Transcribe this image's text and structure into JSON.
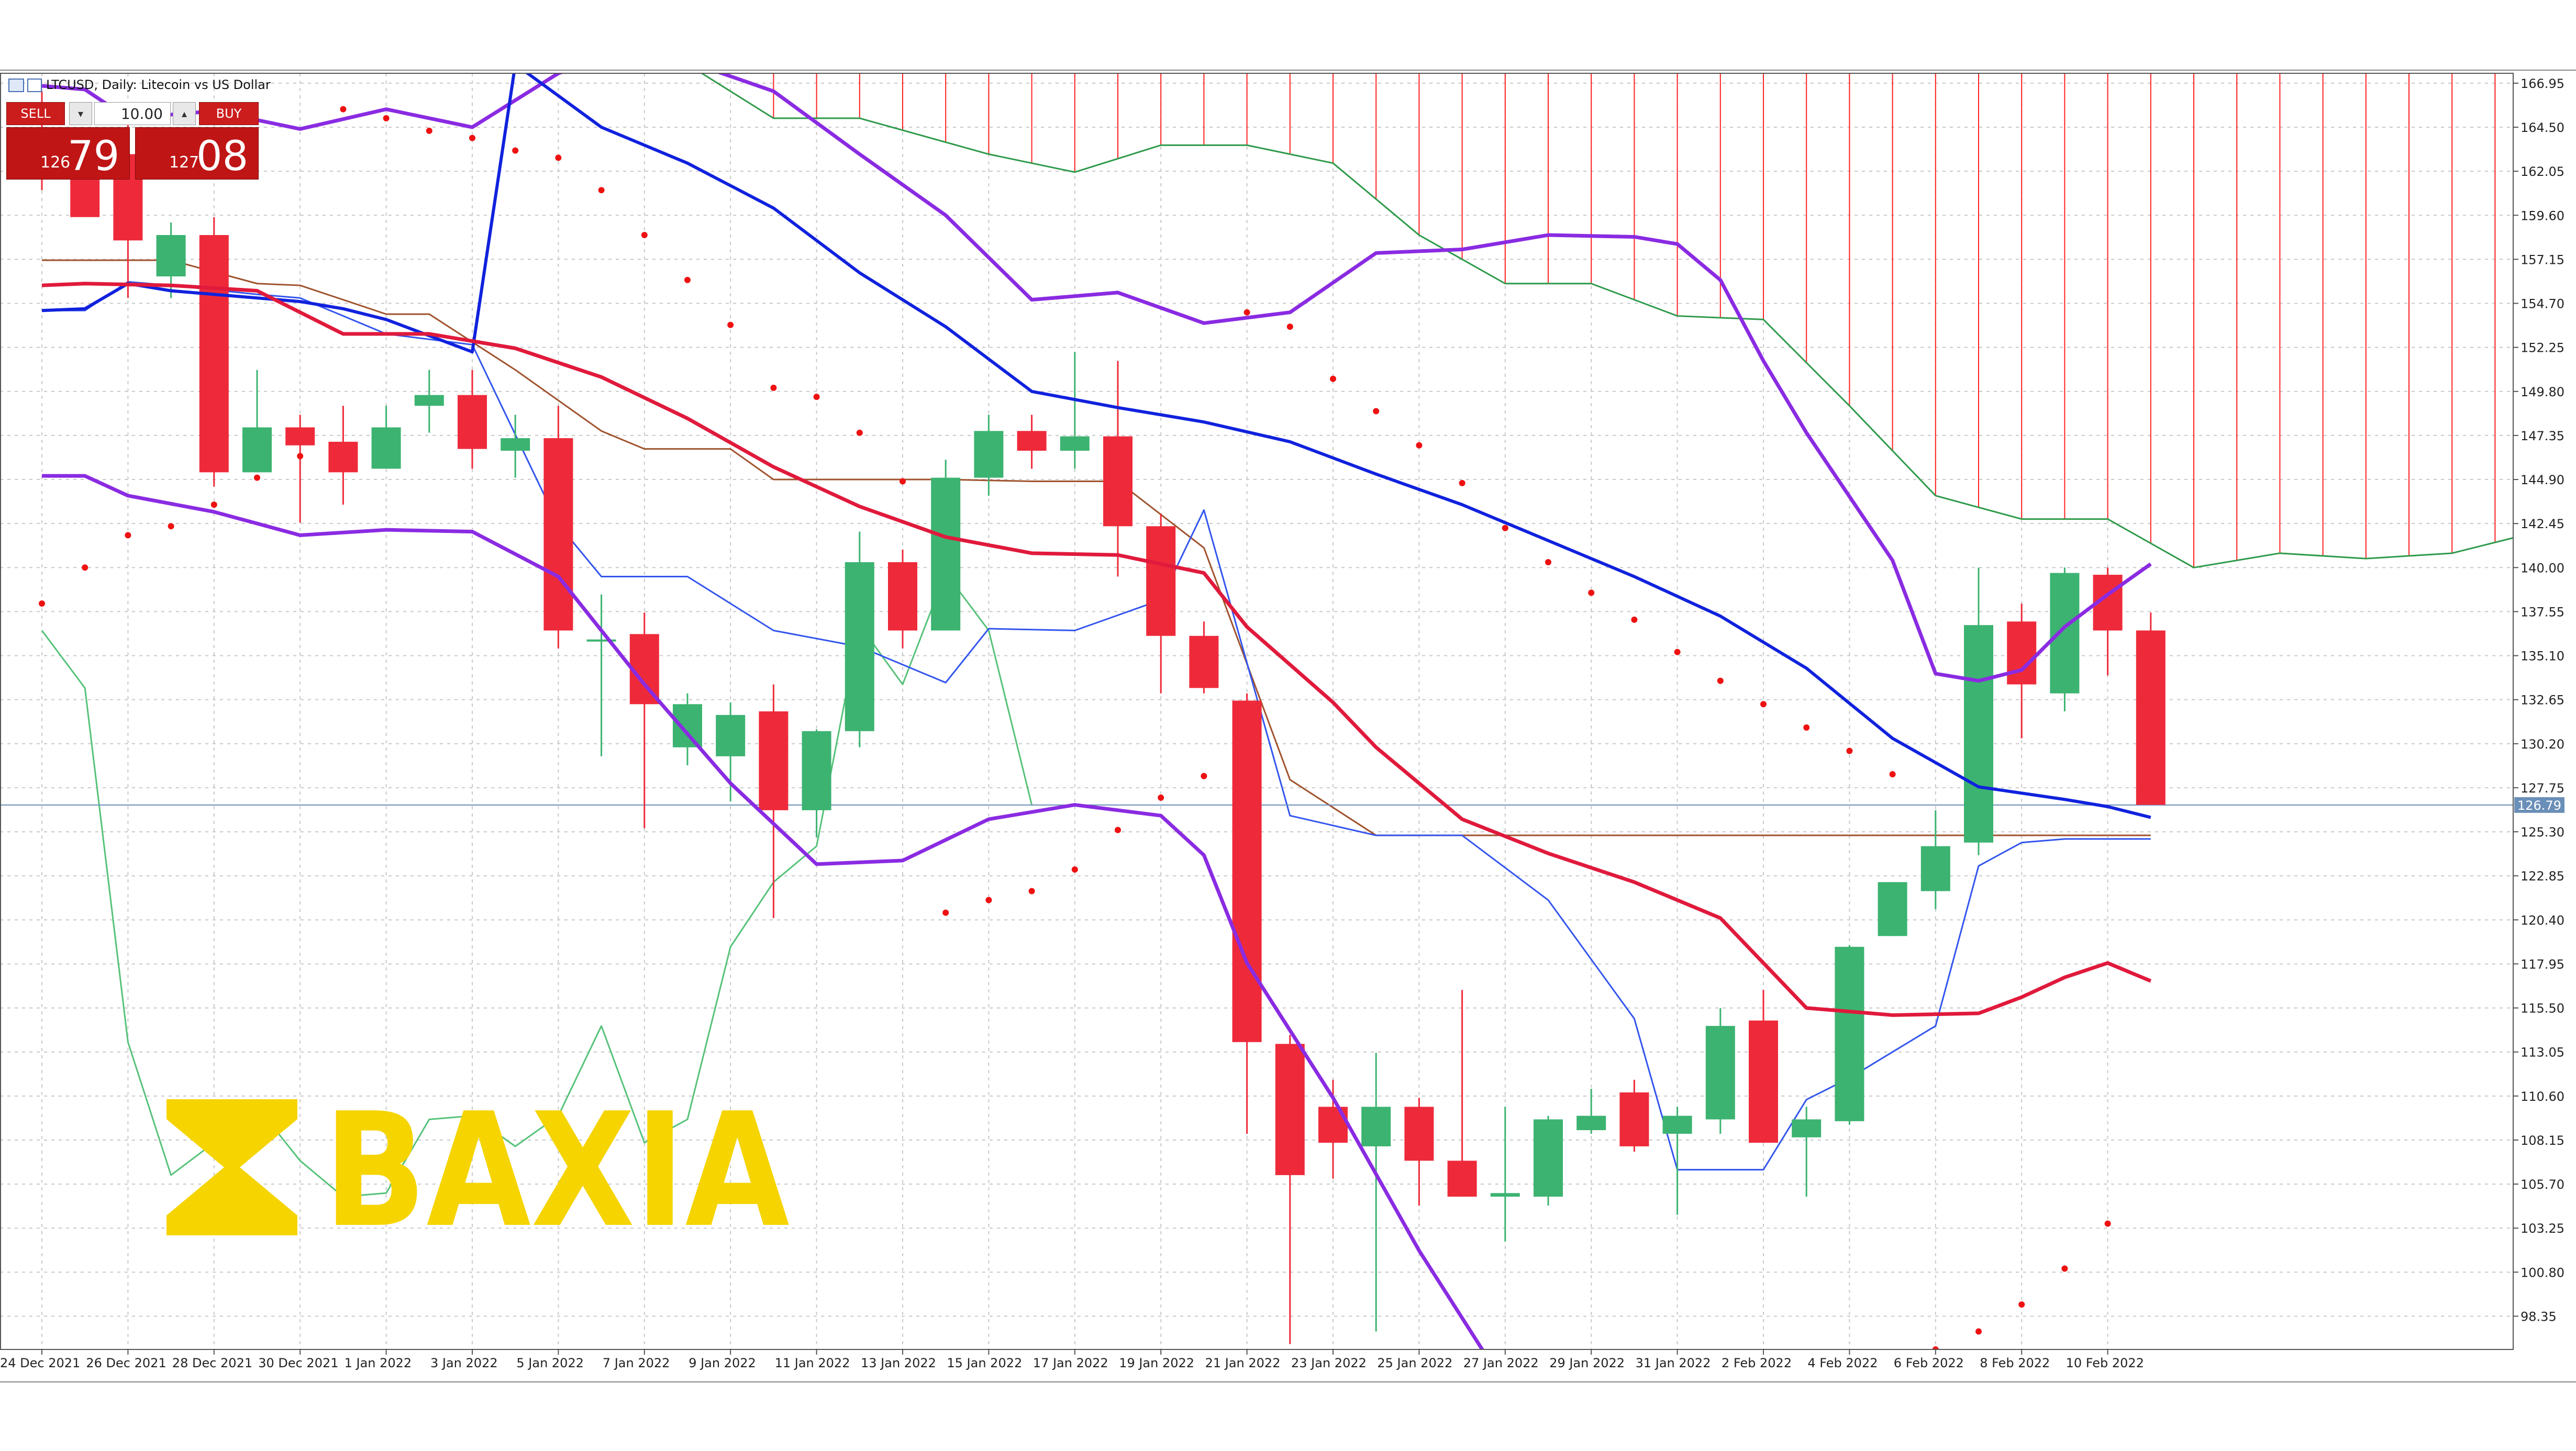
{
  "window": {
    "symbol_title": "LTCUSD, Daily:  Litecoin vs US Dollar"
  },
  "trade_panel": {
    "sell_label": "SELL",
    "buy_label": "BUY",
    "lot_value": "10.00",
    "sell_price_small": "126",
    "sell_price_big": "79",
    "buy_price_small": "127",
    "buy_price_big": "08"
  },
  "logo": {
    "text": "BAXIA",
    "color": "#f5d400"
  },
  "colors": {
    "bull": "#3cb371",
    "bear": "#ee2a3a",
    "ma_blue": "#1022dd",
    "ma_red": "#e01a3c",
    "ma_purple": "#8a2be2",
    "tenkan_blue": "#3355ee",
    "kijun_brown": "#a0522d",
    "chikou_green": "#2e9a4a",
    "cloud_red": "#ff2020",
    "sar": "#ee1111"
  },
  "chart_data": {
    "type": "candlestick",
    "ylim": [
      96.5,
      167.5
    ],
    "y_ticks": [
      "166.95",
      "164.50",
      "162.05",
      "159.60",
      "157.15",
      "154.70",
      "152.25",
      "149.80",
      "147.35",
      "144.90",
      "142.45",
      "140.00",
      "137.55",
      "135.10",
      "132.65",
      "130.20",
      "127.75",
      "125.30",
      "122.85",
      "120.40",
      "117.95",
      "115.50",
      "113.05",
      "110.60",
      "108.15",
      "105.70",
      "103.25",
      "100.80",
      "98.35"
    ],
    "current_price_label": "126.79",
    "current_price": 126.79,
    "x_labels": [
      "24 Dec 2021",
      "26 Dec 2021",
      "28 Dec 2021",
      "30 Dec 2021",
      "1 Jan 2022",
      "3 Jan 2022",
      "5 Jan 2022",
      "7 Jan 2022",
      "9 Jan 2022",
      "11 Jan 2022",
      "13 Jan 2022",
      "15 Jan 2022",
      "17 Jan 2022",
      "19 Jan 2022",
      "21 Jan 2022",
      "23 Jan 2022",
      "25 Jan 2022",
      "27 Jan 2022",
      "29 Jan 2022",
      "31 Jan 2022",
      "2 Feb 2022",
      "4 Feb 2022",
      "6 Feb 2022",
      "8 Feb 2022",
      "10 Feb 2022"
    ],
    "x_label_bars": [
      0,
      2,
      4,
      6,
      8,
      10,
      12,
      14,
      16,
      18,
      20,
      22,
      24,
      26,
      28,
      30,
      32,
      34,
      36,
      38,
      40,
      42,
      44,
      46,
      48
    ],
    "candles": [
      {
        "o": 163.5,
        "h": 166.5,
        "l": 161.0,
        "c": 162.5
      },
      {
        "o": 162.5,
        "h": 164.5,
        "l": 159.5,
        "c": 159.5
      },
      {
        "o": 163.0,
        "h": 165.5,
        "l": 155.0,
        "c": 158.2
      },
      {
        "o": 156.2,
        "h": 159.2,
        "l": 155.0,
        "c": 158.5
      },
      {
        "o": 158.5,
        "h": 159.5,
        "l": 144.5,
        "c": 145.3
      },
      {
        "o": 145.3,
        "h": 151.0,
        "l": 145.3,
        "c": 147.8
      },
      {
        "o": 147.8,
        "h": 148.5,
        "l": 142.5,
        "c": 146.8
      },
      {
        "o": 147.0,
        "h": 149.0,
        "l": 143.5,
        "c": 145.3
      },
      {
        "o": 145.5,
        "h": 149.0,
        "l": 145.5,
        "c": 147.8
      },
      {
        "o": 149.0,
        "h": 151.0,
        "l": 147.5,
        "c": 149.6
      },
      {
        "o": 149.6,
        "h": 151.0,
        "l": 145.5,
        "c": 146.6
      },
      {
        "o": 146.5,
        "h": 148.5,
        "l": 145.0,
        "c": 147.2
      },
      {
        "o": 147.2,
        "h": 149.0,
        "l": 135.5,
        "c": 136.5
      },
      {
        "o": 136.0,
        "h": 138.5,
        "l": 129.5,
        "c": 136.0
      },
      {
        "o": 136.3,
        "h": 137.5,
        "l": 125.5,
        "c": 132.4
      },
      {
        "o": 130.0,
        "h": 133.0,
        "l": 129.0,
        "c": 132.4
      },
      {
        "o": 129.5,
        "h": 132.5,
        "l": 127.0,
        "c": 131.8
      },
      {
        "o": 132.0,
        "h": 133.5,
        "l": 120.5,
        "c": 126.5
      },
      {
        "o": 126.5,
        "h": 131.0,
        "l": 125.0,
        "c": 130.9
      },
      {
        "o": 130.9,
        "h": 142.0,
        "l": 130.0,
        "c": 140.3
      },
      {
        "o": 140.3,
        "h": 141.0,
        "l": 135.5,
        "c": 136.5
      },
      {
        "o": 136.5,
        "h": 146.0,
        "l": 136.5,
        "c": 145.0
      },
      {
        "o": 145.0,
        "h": 148.5,
        "l": 144.0,
        "c": 147.6
      },
      {
        "o": 147.6,
        "h": 148.5,
        "l": 145.5,
        "c": 146.5
      },
      {
        "o": 146.5,
        "h": 152.0,
        "l": 145.5,
        "c": 147.3
      },
      {
        "o": 147.3,
        "h": 151.5,
        "l": 139.5,
        "c": 142.3
      },
      {
        "o": 142.3,
        "h": 143.0,
        "l": 133.0,
        "c": 136.2
      },
      {
        "o": 136.2,
        "h": 137.0,
        "l": 133.0,
        "c": 133.3
      },
      {
        "o": 132.6,
        "h": 133.0,
        "l": 108.5,
        "c": 113.6
      },
      {
        "o": 113.5,
        "h": 114.0,
        "l": 96.8,
        "c": 106.2
      },
      {
        "o": 110.0,
        "h": 111.5,
        "l": 106.0,
        "c": 108.0
      },
      {
        "o": 107.8,
        "h": 113.0,
        "l": 97.5,
        "c": 110.0
      },
      {
        "o": 110.0,
        "h": 110.5,
        "l": 104.5,
        "c": 107.0
      },
      {
        "o": 107.0,
        "h": 116.5,
        "l": 105.0,
        "c": 105.0
      },
      {
        "o": 105.0,
        "h": 110.0,
        "l": 102.5,
        "c": 105.2
      },
      {
        "o": 105.0,
        "h": 109.5,
        "l": 104.5,
        "c": 109.3
      },
      {
        "o": 108.7,
        "h": 111.0,
        "l": 108.5,
        "c": 109.5
      },
      {
        "o": 110.8,
        "h": 111.5,
        "l": 107.5,
        "c": 107.8
      },
      {
        "o": 108.5,
        "h": 110.0,
        "l": 104.0,
        "c": 109.5
      },
      {
        "o": 109.3,
        "h": 115.5,
        "l": 108.5,
        "c": 114.5
      },
      {
        "o": 114.8,
        "h": 116.5,
        "l": 108.0,
        "c": 108.0
      },
      {
        "o": 108.3,
        "h": 110.0,
        "l": 105.0,
        "c": 109.3
      },
      {
        "o": 109.2,
        "h": 119.0,
        "l": 109.0,
        "c": 118.9
      },
      {
        "o": 119.5,
        "h": 122.5,
        "l": 119.5,
        "c": 122.5
      },
      {
        "o": 122.0,
        "h": 126.5,
        "l": 121.0,
        "c": 124.5
      },
      {
        "o": 124.7,
        "h": 140.0,
        "l": 124.0,
        "c": 136.8
      },
      {
        "o": 137.0,
        "h": 138.0,
        "l": 130.5,
        "c": 133.5
      },
      {
        "o": 133.0,
        "h": 140.0,
        "l": 132.0,
        "c": 139.7
      },
      {
        "o": 139.6,
        "h": 140.0,
        "l": 134.0,
        "c": 136.5
      },
      {
        "o": 136.5,
        "h": 137.5,
        "l": 126.8,
        "c": 126.8
      }
    ],
    "ma_blue": [
      [
        0,
        154.3
      ],
      [
        1,
        154.4
      ],
      [
        2,
        155.8
      ],
      [
        3,
        155.4
      ],
      [
        4,
        155.2
      ],
      [
        6,
        154.8
      ],
      [
        7,
        154.4
      ],
      [
        8,
        153.8
      ],
      [
        10,
        152.0
      ],
      [
        11,
        168.0
      ],
      [
        13,
        164.5
      ],
      [
        15,
        162.5
      ],
      [
        17,
        160.0
      ],
      [
        19,
        156.4
      ],
      [
        21,
        153.4
      ],
      [
        23,
        149.8
      ],
      [
        25,
        148.9
      ],
      [
        27,
        148.1
      ],
      [
        29,
        147.0
      ],
      [
        31,
        145.2
      ],
      [
        33,
        143.5
      ],
      [
        35,
        141.5
      ],
      [
        37,
        139.5
      ],
      [
        39,
        137.3
      ],
      [
        41,
        134.4
      ],
      [
        43,
        130.5
      ],
      [
        45,
        127.8
      ],
      [
        47,
        127.1
      ],
      [
        48,
        126.7
      ],
      [
        49,
        126.1
      ]
    ],
    "ma_red": [
      [
        0,
        155.7
      ],
      [
        1,
        155.8
      ],
      [
        3,
        155.7
      ],
      [
        5,
        155.4
      ],
      [
        7,
        153.0
      ],
      [
        9,
        153.0
      ],
      [
        11,
        152.2
      ],
      [
        13,
        150.6
      ],
      [
        15,
        148.3
      ],
      [
        17,
        145.6
      ],
      [
        19,
        143.4
      ],
      [
        21,
        141.7
      ],
      [
        23,
        140.8
      ],
      [
        25,
        140.7
      ],
      [
        27,
        139.7
      ],
      [
        28,
        136.7
      ],
      [
        30,
        132.5
      ],
      [
        31,
        130.0
      ],
      [
        33,
        126.0
      ],
      [
        35,
        124.1
      ],
      [
        37,
        122.5
      ],
      [
        39,
        120.5
      ],
      [
        41,
        115.5
      ],
      [
        43,
        115.1
      ],
      [
        45,
        115.2
      ],
      [
        46,
        116.1
      ],
      [
        47,
        117.2
      ],
      [
        48,
        118.0
      ],
      [
        49,
        117.0
      ]
    ],
    "ma_purple_upper": [
      [
        0,
        166.8
      ],
      [
        1,
        166.6
      ],
      [
        2,
        165.0
      ],
      [
        4,
        165.4
      ],
      [
        6,
        164.4
      ],
      [
        8,
        165.5
      ],
      [
        10,
        164.5
      ],
      [
        12,
        167.5
      ],
      [
        14,
        169.0
      ],
      [
        17,
        166.5
      ],
      [
        19,
        163.0
      ],
      [
        21,
        159.6
      ],
      [
        23,
        154.9
      ],
      [
        25,
        155.3
      ],
      [
        27,
        153.6
      ],
      [
        29,
        154.2
      ],
      [
        31,
        157.5
      ],
      [
        33,
        157.7
      ],
      [
        35,
        158.5
      ],
      [
        37,
        158.4
      ],
      [
        38,
        158.0
      ],
      [
        39,
        156.0
      ],
      [
        40,
        151.5
      ],
      [
        41,
        147.5
      ],
      [
        43,
        140.4
      ],
      [
        44,
        134.1
      ],
      [
        45,
        133.7
      ],
      [
        46,
        134.3
      ],
      [
        47,
        136.7
      ],
      [
        48,
        138.5
      ],
      [
        49,
        140.2
      ]
    ],
    "ma_purple_lower": [
      [
        0,
        145.1
      ],
      [
        1,
        145.1
      ],
      [
        2,
        144.0
      ],
      [
        4,
        143.1
      ],
      [
        6,
        141.8
      ],
      [
        8,
        142.1
      ],
      [
        10,
        142.0
      ],
      [
        12,
        139.5
      ],
      [
        14,
        133.5
      ],
      [
        16,
        128.0
      ],
      [
        18,
        123.5
      ],
      [
        20,
        123.7
      ],
      [
        22,
        126.0
      ],
      [
        24,
        126.8
      ],
      [
        26,
        126.2
      ],
      [
        27,
        124.0
      ],
      [
        28,
        118.0
      ],
      [
        30,
        110.5
      ],
      [
        32,
        102.0
      ],
      [
        34,
        94.5
      ]
    ],
    "tenkan": [
      [
        0,
        154.3
      ],
      [
        1,
        154.3
      ],
      [
        2,
        155.9
      ],
      [
        3,
        155.7
      ],
      [
        5,
        155.2
      ],
      [
        6,
        155.0
      ],
      [
        8,
        153.0
      ],
      [
        10,
        152.4
      ],
      [
        12,
        142.4
      ],
      [
        13,
        139.5
      ],
      [
        15,
        139.5
      ],
      [
        17,
        136.5
      ],
      [
        19,
        135.6
      ],
      [
        21,
        133.6
      ],
      [
        22,
        136.6
      ],
      [
        24,
        136.5
      ],
      [
        26,
        138.2
      ],
      [
        27,
        143.2
      ],
      [
        29,
        126.2
      ],
      [
        31,
        125.1
      ],
      [
        33,
        125.1
      ],
      [
        35,
        121.5
      ],
      [
        37,
        114.9
      ],
      [
        38,
        106.5
      ],
      [
        39,
        106.5
      ],
      [
        40,
        106.5
      ],
      [
        41,
        110.4
      ],
      [
        42,
        111.6
      ],
      [
        44,
        114.5
      ],
      [
        45,
        123.4
      ],
      [
        46,
        124.7
      ],
      [
        47,
        124.9
      ],
      [
        48,
        124.9
      ],
      [
        49,
        124.9
      ]
    ],
    "kijun": [
      [
        0,
        157.1
      ],
      [
        1,
        157.1
      ],
      [
        3,
        157.1
      ],
      [
        5,
        155.8
      ],
      [
        6,
        155.7
      ],
      [
        8,
        154.1
      ],
      [
        9,
        154.1
      ],
      [
        11,
        151.0
      ],
      [
        13,
        147.6
      ],
      [
        14,
        146.6
      ],
      [
        16,
        146.6
      ],
      [
        17,
        144.9
      ],
      [
        19,
        144.9
      ],
      [
        21,
        144.9
      ],
      [
        23,
        144.8
      ],
      [
        25,
        144.8
      ],
      [
        27,
        141.1
      ],
      [
        29,
        128.2
      ],
      [
        31,
        125.1
      ],
      [
        33,
        125.1
      ],
      [
        35,
        125.1
      ],
      [
        37,
        125.1
      ],
      [
        39,
        125.1
      ],
      [
        41,
        125.1
      ],
      [
        43,
        125.1
      ],
      [
        45,
        125.1
      ],
      [
        47,
        125.1
      ],
      [
        49,
        125.1
      ]
    ],
    "chikou": [
      [
        0,
        136.5
      ],
      [
        1,
        133.3
      ],
      [
        2,
        113.6
      ],
      [
        3,
        106.2
      ],
      [
        4,
        108.0
      ],
      [
        5,
        110.0
      ],
      [
        6,
        107.0
      ],
      [
        7,
        105.0
      ],
      [
        8,
        105.2
      ],
      [
        9,
        109.3
      ],
      [
        10,
        109.5
      ],
      [
        11,
        107.8
      ],
      [
        12,
        109.5
      ],
      [
        13,
        114.5
      ],
      [
        14,
        108.0
      ],
      [
        15,
        109.3
      ],
      [
        16,
        118.9
      ],
      [
        17,
        122.5
      ],
      [
        18,
        124.5
      ],
      [
        19,
        136.8
      ],
      [
        20,
        133.5
      ],
      [
        21,
        139.7
      ],
      [
        22,
        136.5
      ],
      [
        23,
        126.8
      ]
    ],
    "senkou_a": [
      [
        0,
        170
      ],
      [
        15,
        168
      ],
      [
        17,
        165.0
      ],
      [
        19,
        165.0
      ],
      [
        22,
        163.0
      ],
      [
        24,
        162.0
      ],
      [
        26,
        163.5
      ],
      [
        28,
        163.5
      ],
      [
        30,
        162.5
      ],
      [
        32,
        158.5
      ],
      [
        34,
        155.8
      ],
      [
        36,
        155.8
      ],
      [
        38,
        154.0
      ],
      [
        40,
        153.8
      ],
      [
        42,
        149.0
      ],
      [
        44,
        144.0
      ],
      [
        46,
        142.7
      ],
      [
        48,
        142.7
      ],
      [
        50,
        140.0
      ],
      [
        52,
        140.8
      ],
      [
        54,
        140.5
      ],
      [
        56,
        140.8
      ],
      [
        58,
        142.0
      ],
      [
        60,
        133.5
      ],
      [
        62,
        126.2
      ],
      [
        64,
        125.1
      ],
      [
        66,
        125.1
      ]
    ],
    "senkou_b": [
      [
        44,
        169
      ],
      [
        46,
        169
      ],
      [
        48,
        169
      ],
      [
        50,
        169
      ],
      [
        52,
        169
      ],
      [
        54,
        169
      ],
      [
        56,
        169
      ],
      [
        58,
        169
      ],
      [
        59,
        168.5
      ],
      [
        60,
        164.0
      ],
      [
        62,
        153.5
      ],
      [
        63,
        152.3
      ],
      [
        65,
        143.0
      ],
      [
        66,
        133.0
      ]
    ],
    "sar": [
      [
        0,
        138.0
      ],
      [
        1,
        140.0
      ],
      [
        2,
        141.8
      ],
      [
        3,
        142.3
      ],
      [
        4,
        143.5
      ],
      [
        5,
        145.0
      ],
      [
        6,
        146.2
      ],
      [
        7,
        165.5
      ],
      [
        8,
        165.0
      ],
      [
        9,
        164.3
      ],
      [
        10,
        163.9
      ],
      [
        11,
        163.2
      ],
      [
        12,
        162.8
      ],
      [
        13,
        161.0
      ],
      [
        14,
        158.5
      ],
      [
        15,
        156.0
      ],
      [
        16,
        153.5
      ],
      [
        17,
        150.0
      ],
      [
        18,
        149.5
      ],
      [
        19,
        147.5
      ],
      [
        20,
        144.8
      ],
      [
        21,
        120.8
      ],
      [
        22,
        121.5
      ],
      [
        23,
        122.0
      ],
      [
        24,
        123.2
      ],
      [
        25,
        125.4
      ],
      [
        26,
        127.2
      ],
      [
        27,
        128.4
      ],
      [
        28,
        154.2
      ],
      [
        29,
        153.4
      ],
      [
        30,
        150.5
      ],
      [
        31,
        148.7
      ],
      [
        32,
        146.8
      ],
      [
        33,
        144.7
      ],
      [
        34,
        142.2
      ],
      [
        35,
        140.3
      ],
      [
        36,
        138.6
      ],
      [
        37,
        137.1
      ],
      [
        38,
        135.3
      ],
      [
        39,
        133.7
      ],
      [
        40,
        132.4
      ],
      [
        41,
        131.1
      ],
      [
        42,
        129.8
      ],
      [
        43,
        128.5
      ],
      [
        44,
        96.5
      ],
      [
        45,
        97.5
      ],
      [
        46,
        99.0
      ],
      [
        47,
        101.0
      ],
      [
        48,
        103.5
      ]
    ]
  }
}
